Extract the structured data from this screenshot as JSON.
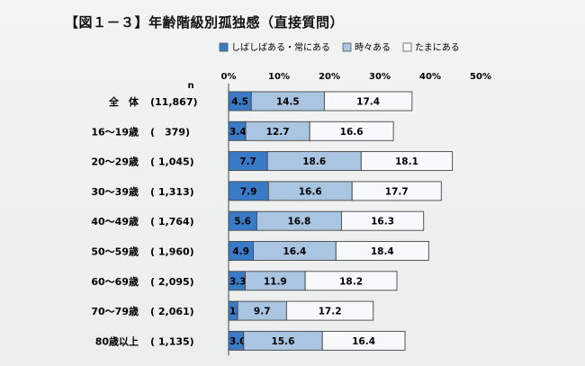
{
  "title": "【図１－３】年齢階級別孤独感（直接質問）",
  "n_label": "n",
  "legend": [
    {
      "label": "しばしばある・常にある",
      "color": "#3a7bc8"
    },
    {
      "label": "時々ある",
      "color": "#a9c5e2"
    },
    {
      "label": "たまにある",
      "color": "#f7f9fb"
    }
  ],
  "chart_data": {
    "type": "bar",
    "stacked": true,
    "orientation": "horizontal",
    "xlim": [
      0,
      50
    ],
    "xticks": [
      "0%",
      "10%",
      "20%",
      "30%",
      "40%",
      "50%"
    ],
    "categories": [
      "全　体",
      "16～19歳",
      "20～29歳",
      "30～39歳",
      "40～49歳",
      "50～59歳",
      "60～69歳",
      "70～79歳",
      "80歳以上"
    ],
    "n": [
      "(11,867)",
      "(　379)",
      "( 1,045)",
      "( 1,313)",
      "( 1,764)",
      "( 1,960)",
      "( 2,095)",
      "( 2,061)",
      "( 1,135)"
    ],
    "series": [
      {
        "name": "しばしばある・常にある",
        "values": [
          4.5,
          3.4,
          7.7,
          7.9,
          5.6,
          4.9,
          3.3,
          1.8,
          3.0
        ]
      },
      {
        "name": "時々ある",
        "values": [
          14.5,
          12.7,
          18.6,
          16.6,
          16.8,
          16.4,
          11.9,
          9.7,
          15.6
        ]
      },
      {
        "name": "たまにある",
        "values": [
          17.4,
          16.6,
          18.1,
          17.7,
          16.3,
          18.4,
          18.2,
          17.2,
          16.4
        ]
      }
    ]
  }
}
